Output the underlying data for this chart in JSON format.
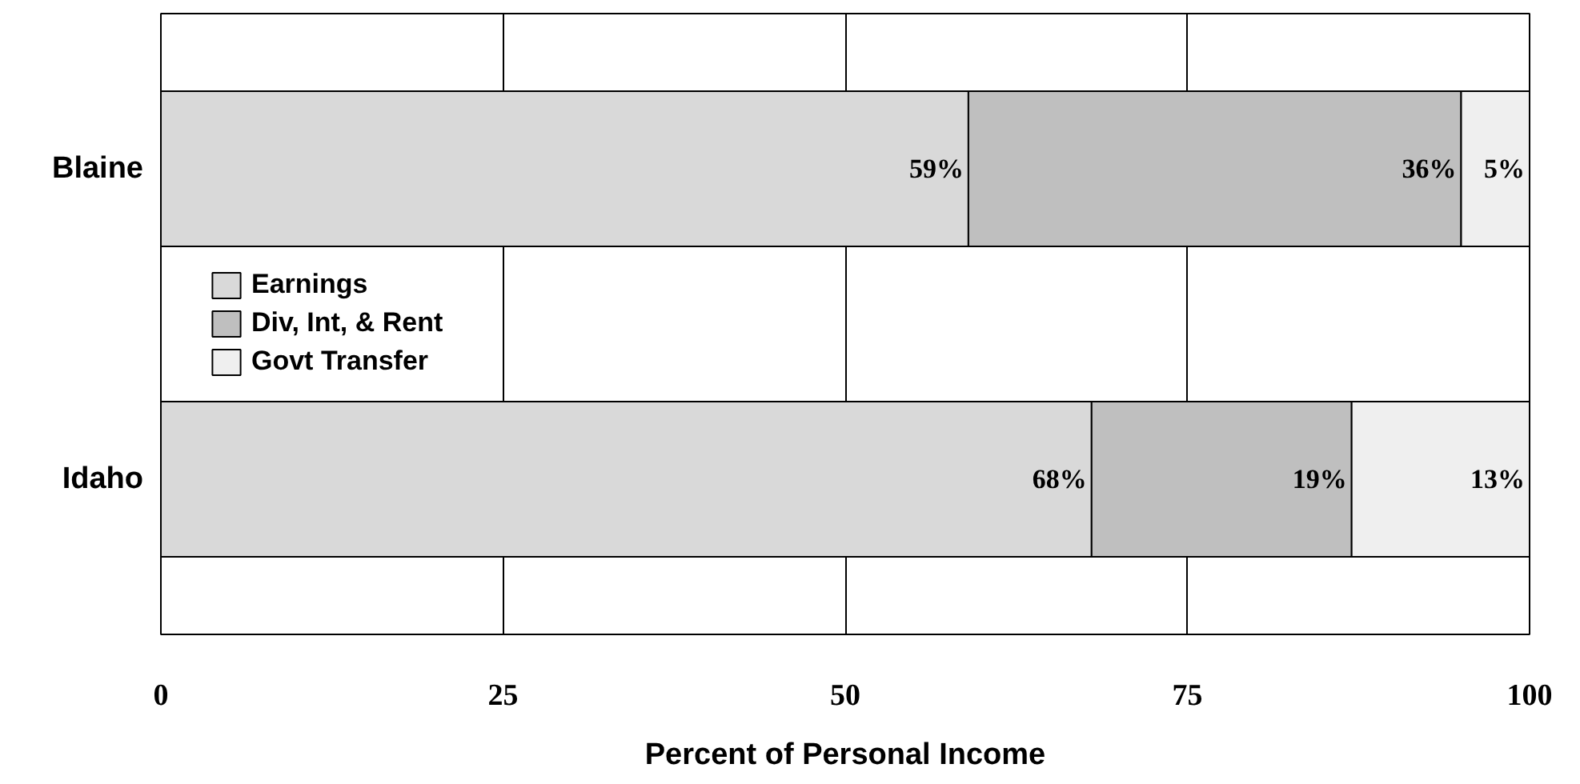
{
  "chart_data": {
    "type": "bar",
    "orientation": "horizontal",
    "stacked": true,
    "xlabel": "Percent of Personal Income",
    "categories": [
      "Blaine",
      "Idaho"
    ],
    "series": [
      {
        "name": "Earnings",
        "color": "#d9d9d9",
        "values": [
          59,
          68
        ],
        "value_labels": [
          "59%",
          "68%"
        ]
      },
      {
        "name": "Div, Int, & Rent",
        "color": "#bfbfbf",
        "values": [
          36,
          19
        ],
        "value_labels": [
          "36%",
          "19%"
        ]
      },
      {
        "name": "Govt Transfer",
        "color": "#efefef",
        "values": [
          5,
          13
        ],
        "value_labels": [
          "5%",
          "13%"
        ]
      }
    ],
    "xlim": [
      0,
      100
    ],
    "xticks": [
      0,
      25,
      50,
      75,
      100
    ],
    "grid": "x",
    "legend": "left"
  }
}
